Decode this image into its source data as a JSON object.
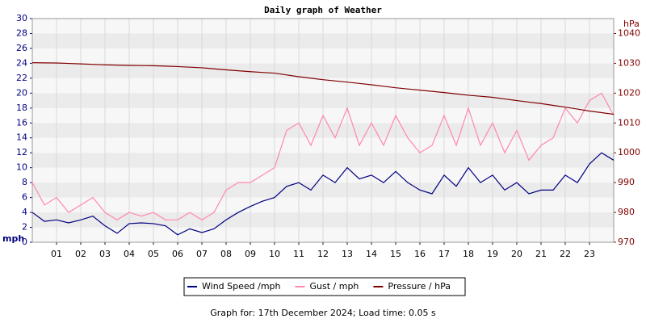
{
  "chart_data": {
    "type": "line",
    "title": "Daily graph of Weather",
    "ylabel": "mph",
    "y2label": "hPa",
    "footer": "Graph for: 17th December 2024; Load time: 0.05 s",
    "x": [
      0,
      0.5,
      1,
      1.5,
      2,
      2.5,
      3,
      3.5,
      4,
      4.5,
      5,
      5.5,
      6,
      6.5,
      7,
      7.5,
      8,
      8.5,
      9,
      9.5,
      10,
      10.5,
      11,
      11.5,
      12,
      12.5,
      13,
      13.5,
      14,
      14.5,
      15,
      15.5,
      16,
      16.5,
      17,
      17.5,
      18,
      18.5,
      19,
      19.5,
      20,
      20.5,
      21,
      21.5,
      22,
      22.5,
      23,
      23.5,
      24
    ],
    "xlim": [
      0,
      24
    ],
    "xticks": [
      {
        "value": 1,
        "label": "01"
      },
      {
        "value": 2,
        "label": "02"
      },
      {
        "value": 3,
        "label": "03"
      },
      {
        "value": 4,
        "label": "04"
      },
      {
        "value": 5,
        "label": "05"
      },
      {
        "value": 6,
        "label": "06"
      },
      {
        "value": 7,
        "label": "07"
      },
      {
        "value": 8,
        "label": "08"
      },
      {
        "value": 9,
        "label": "09"
      },
      {
        "value": 10,
        "label": "10"
      },
      {
        "value": 11,
        "label": "11"
      },
      {
        "value": 12,
        "label": "12"
      },
      {
        "value": 13,
        "label": "13"
      },
      {
        "value": 14,
        "label": "14"
      },
      {
        "value": 15,
        "label": "15"
      },
      {
        "value": 16,
        "label": "16"
      },
      {
        "value": 17,
        "label": "17"
      },
      {
        "value": 18,
        "label": "18"
      },
      {
        "value": 19,
        "label": "19"
      },
      {
        "value": 20,
        "label": "20"
      },
      {
        "value": 21,
        "label": "21"
      },
      {
        "value": 22,
        "label": "22"
      },
      {
        "value": 23,
        "label": "23"
      }
    ],
    "ylim": [
      0,
      30
    ],
    "yticks": [
      0,
      2,
      4,
      6,
      8,
      10,
      12,
      14,
      16,
      18,
      20,
      22,
      24,
      26,
      28,
      30
    ],
    "y2lim": [
      970,
      1045
    ],
    "y2ticks": [
      970,
      980,
      990,
      1000,
      1010,
      1020,
      1030,
      1040
    ],
    "grid": true,
    "series": [
      {
        "name": "Gust / mph",
        "color": "#ff88aa",
        "values": [
          8,
          5,
          6,
          4,
          5,
          6,
          4,
          3,
          4,
          3.5,
          4,
          3,
          3,
          4,
          3,
          4,
          7,
          8,
          8,
          9,
          10,
          15,
          16,
          13,
          17,
          14,
          18,
          13,
          16,
          13,
          17,
          14,
          12,
          13,
          17,
          13,
          18,
          13,
          16,
          12,
          15,
          11,
          13,
          14,
          18,
          16,
          19,
          20,
          17
        ]
      },
      {
        "name": "Wind Speed /mph",
        "color": "#000080",
        "values": [
          4,
          2.8,
          3,
          2.6,
          3,
          3.5,
          2.2,
          1.2,
          2.5,
          2.6,
          2.5,
          2.2,
          1,
          1.8,
          1.3,
          1.8,
          3,
          4,
          4.8,
          5.5,
          6,
          7.5,
          8,
          7,
          9,
          8,
          10,
          8.5,
          9,
          8,
          9.5,
          8,
          7,
          6.5,
          9,
          7.5,
          10,
          8,
          9,
          7,
          8,
          6.5,
          7,
          7,
          9,
          8,
          10.5,
          12,
          11
        ]
      },
      {
        "name": "Pressure / hPa",
        "color": "#800000",
        "axis": "y2",
        "values": [
          1030.2,
          1030.15,
          1030.1,
          1029.95,
          1029.8,
          1029.65,
          1029.5,
          1029.4,
          1029.3,
          1029.25,
          1029.2,
          1029.05,
          1028.9,
          1028.7,
          1028.5,
          1028.15,
          1027.8,
          1027.5,
          1027.2,
          1026.95,
          1026.7,
          1026.1,
          1025.5,
          1025,
          1024.5,
          1024.1,
          1023.7,
          1023.25,
          1022.8,
          1022.3,
          1021.8,
          1021.4,
          1021,
          1020.6,
          1020.2,
          1019.75,
          1019.3,
          1018.95,
          1018.6,
          1018.05,
          1017.5,
          1017,
          1016.5,
          1015.9,
          1015.3,
          1014.65,
          1014,
          1013.45,
          1012.9
        ]
      }
    ]
  }
}
